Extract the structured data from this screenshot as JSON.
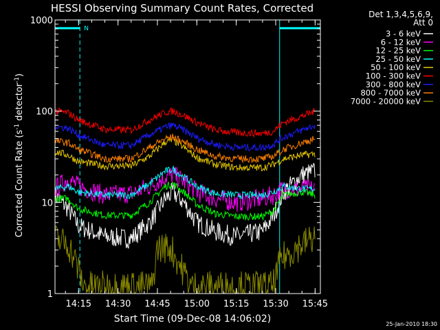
{
  "chart_data": {
    "type": "line",
    "title": "HESSI Observing Summary Count Rates, Corrected",
    "xlabel": "Start Time (09-Dec-08 14:06:02)",
    "ylabel_main": "Corrected Count Rate (s",
    "ylabel_sup1": "-1",
    "ylabel_mid": " detector",
    "ylabel_sup2": "-1",
    "ylabel_end": ")",
    "y_scale": "log",
    "ylim": [
      1,
      1000
    ],
    "xlim": [
      "14:06:02",
      "15:47:00"
    ],
    "x_ticks": [
      "14:15",
      "14:30",
      "14:45",
      "15:00",
      "15:15",
      "15:30",
      "15:45"
    ],
    "y_ticks": [
      "1",
      "10",
      "100",
      "1000"
    ],
    "legend_header": [
      "Det 1,3,4,5,6,9,",
      "Att 0"
    ],
    "legend_placement": "right",
    "footer": "25-Jan-2010 18:30",
    "night_marker_label": "N",
    "night_intervals": [
      [
        "14:06:02",
        "14:15:30"
      ],
      [
        "15:31:30",
        "15:47:00"
      ]
    ],
    "series": [
      {
        "name": "3 - 6 keV",
        "color": "#ffffff",
        "points": [
          [
            "14:06",
            12
          ],
          [
            "14:11",
            8.5
          ],
          [
            "14:15",
            5.5
          ],
          [
            "14:25",
            4.2
          ],
          [
            "14:35",
            4
          ],
          [
            "14:42",
            6
          ],
          [
            "14:48",
            11
          ],
          [
            "14:51",
            13
          ],
          [
            "14:55",
            10
          ],
          [
            "15:00",
            6
          ],
          [
            "15:07",
            4.8
          ],
          [
            "15:15",
            4.2
          ],
          [
            "15:25",
            4.8
          ],
          [
            "15:29",
            7
          ],
          [
            "15:33",
            13
          ],
          [
            "15:40",
            20
          ],
          [
            "15:45",
            22
          ]
        ]
      },
      {
        "name": "6 - 12 keV",
        "color": "#ff00ff",
        "points": [
          [
            "14:06",
            14
          ],
          [
            "14:11",
            18
          ],
          [
            "14:15",
            15
          ],
          [
            "14:25",
            12
          ],
          [
            "14:35",
            12.5
          ],
          [
            "14:42",
            15
          ],
          [
            "14:48",
            19
          ],
          [
            "14:51",
            20
          ],
          [
            "14:55",
            17
          ],
          [
            "15:00",
            13
          ],
          [
            "15:07",
            11
          ],
          [
            "15:15",
            10
          ],
          [
            "15:25",
            11
          ],
          [
            "15:29",
            12
          ],
          [
            "15:33",
            14
          ],
          [
            "15:40",
            14
          ],
          [
            "15:45",
            14
          ]
        ]
      },
      {
        "name": "12 - 25 keV",
        "color": "#00ff00",
        "points": [
          [
            "14:06",
            11
          ],
          [
            "14:11",
            11
          ],
          [
            "14:15",
            8.5
          ],
          [
            "14:25",
            7.2
          ],
          [
            "14:35",
            7.2
          ],
          [
            "14:42",
            10
          ],
          [
            "14:48",
            15
          ],
          [
            "14:51",
            16
          ],
          [
            "14:55",
            13
          ],
          [
            "15:00",
            9.5
          ],
          [
            "15:07",
            7.5
          ],
          [
            "15:15",
            7
          ],
          [
            "15:25",
            7
          ],
          [
            "15:29",
            8
          ],
          [
            "15:33",
            12
          ],
          [
            "15:40",
            13
          ],
          [
            "15:45",
            12
          ]
        ]
      },
      {
        "name": "25 - 50 keV",
        "color": "#00ffff",
        "points": [
          [
            "14:06",
            14
          ],
          [
            "14:11",
            15
          ],
          [
            "14:15",
            13
          ],
          [
            "14:25",
            12
          ],
          [
            "14:35",
            12
          ],
          [
            "14:42",
            16
          ],
          [
            "14:48",
            22
          ],
          [
            "14:51",
            23
          ],
          [
            "14:55",
            19
          ],
          [
            "15:00",
            15
          ],
          [
            "15:07",
            12.5
          ],
          [
            "15:15",
            12
          ],
          [
            "15:25",
            12
          ],
          [
            "15:29",
            13
          ],
          [
            "15:33",
            15
          ],
          [
            "15:40",
            14
          ],
          [
            "15:45",
            14
          ]
        ]
      },
      {
        "name": "50 - 100 keV",
        "color": "#e8c800",
        "points": [
          [
            "14:06",
            36
          ],
          [
            "14:11",
            33
          ],
          [
            "14:15",
            28
          ],
          [
            "14:25",
            25
          ],
          [
            "14:35",
            25
          ],
          [
            "14:42",
            32
          ],
          [
            "14:48",
            46
          ],
          [
            "14:51",
            48
          ],
          [
            "14:55",
            40
          ],
          [
            "15:00",
            31
          ],
          [
            "15:07",
            26
          ],
          [
            "15:15",
            24
          ],
          [
            "15:25",
            24
          ],
          [
            "15:29",
            26
          ],
          [
            "15:33",
            30
          ],
          [
            "15:40",
            33
          ],
          [
            "15:45",
            34
          ]
        ]
      },
      {
        "name": "100 - 300 keV",
        "color": "#ff0000",
        "points": [
          [
            "14:06",
            100
          ],
          [
            "14:11",
            96
          ],
          [
            "14:15",
            80
          ],
          [
            "14:25",
            63
          ],
          [
            "14:35",
            62
          ],
          [
            "14:42",
            80
          ],
          [
            "14:48",
            97
          ],
          [
            "14:51",
            100
          ],
          [
            "14:55",
            90
          ],
          [
            "15:00",
            75
          ],
          [
            "15:07",
            62
          ],
          [
            "15:15",
            58
          ],
          [
            "15:25",
            57
          ],
          [
            "15:29",
            60
          ],
          [
            "15:33",
            75
          ],
          [
            "15:40",
            88
          ],
          [
            "15:45",
            100
          ]
        ]
      },
      {
        "name": "300 - 800 keV",
        "color": "#1c1cff",
        "points": [
          [
            "14:06",
            68
          ],
          [
            "14:11",
            65
          ],
          [
            "14:15",
            55
          ],
          [
            "14:25",
            42
          ],
          [
            "14:35",
            42
          ],
          [
            "14:42",
            55
          ],
          [
            "14:48",
            67
          ],
          [
            "14:51",
            70
          ],
          [
            "14:55",
            62
          ],
          [
            "15:00",
            51
          ],
          [
            "15:07",
            43
          ],
          [
            "15:15",
            40
          ],
          [
            "15:25",
            40
          ],
          [
            "15:29",
            43
          ],
          [
            "15:33",
            52
          ],
          [
            "15:40",
            62
          ],
          [
            "15:45",
            70
          ]
        ]
      },
      {
        "name": "800 - 7000 keV",
        "color": "#ff8000",
        "points": [
          [
            "14:06",
            47
          ],
          [
            "14:11",
            45
          ],
          [
            "14:15",
            38
          ],
          [
            "14:25",
            30
          ],
          [
            "14:35",
            30
          ],
          [
            "14:42",
            40
          ],
          [
            "14:48",
            50
          ],
          [
            "14:51",
            52
          ],
          [
            "14:55",
            46
          ],
          [
            "15:00",
            38
          ],
          [
            "15:07",
            32
          ],
          [
            "15:15",
            30
          ],
          [
            "15:25",
            30
          ],
          [
            "15:29",
            32
          ],
          [
            "15:33",
            38
          ],
          [
            "15:40",
            45
          ],
          [
            "15:45",
            50
          ]
        ]
      },
      {
        "name": "7000 - 20000 keV",
        "color": "#8a8a00",
        "points": [
          [
            "14:06",
            4
          ],
          [
            "14:11",
            3.5
          ],
          [
            "14:14",
            2.2
          ],
          [
            "14:17",
            1.2
          ],
          [
            "14:43",
            1.2
          ],
          [
            "14:45",
            3.2
          ],
          [
            "14:50",
            3.2
          ],
          [
            "14:53",
            2.2
          ],
          [
            "14:58",
            1.2
          ],
          [
            "15:29",
            1.2
          ],
          [
            "15:32",
            2.4
          ],
          [
            "15:38",
            3.2
          ],
          [
            "15:45",
            4.2
          ]
        ]
      }
    ]
  }
}
